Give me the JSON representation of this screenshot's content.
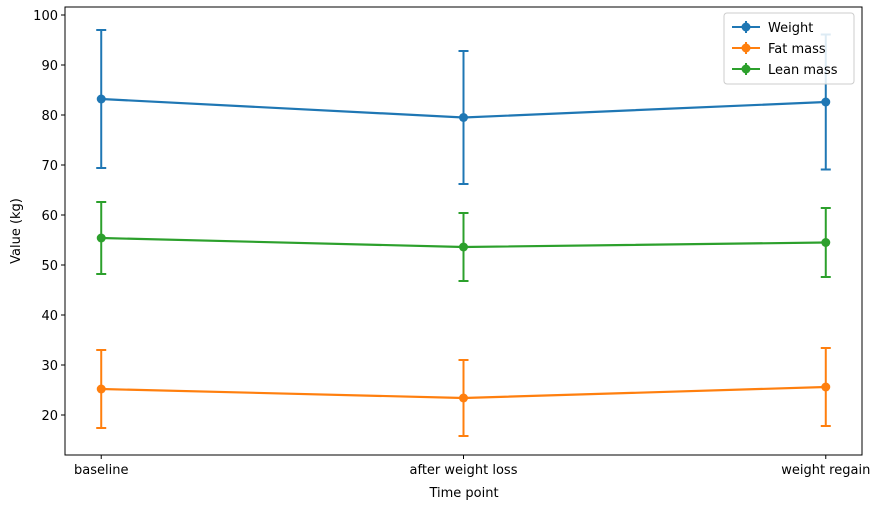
{
  "chart_data": {
    "type": "errorbar-line",
    "xlabel": "Time point",
    "ylabel": "Value (kg)",
    "categories": [
      "baseline",
      "after weight loss",
      "weight regain"
    ],
    "series": [
      {
        "name": "Weight",
        "color": "#1f77b4",
        "values": [
          83.2,
          79.5,
          82.6
        ],
        "errors": [
          13.8,
          13.3,
          13.5
        ]
      },
      {
        "name": "Fat mass",
        "color": "#ff7f0e",
        "values": [
          25.2,
          23.4,
          25.6
        ],
        "errors": [
          7.8,
          7.6,
          7.8
        ]
      },
      {
        "name": "Lean mass",
        "color": "#2ca02c",
        "values": [
          55.4,
          53.6,
          54.5
        ],
        "errors": [
          7.2,
          6.8,
          6.9
        ]
      }
    ],
    "ylim": [
      12,
      101.6
    ],
    "yticks": [
      20,
      30,
      40,
      50,
      60,
      70,
      80,
      90,
      100
    ],
    "legend": "upper right"
  }
}
